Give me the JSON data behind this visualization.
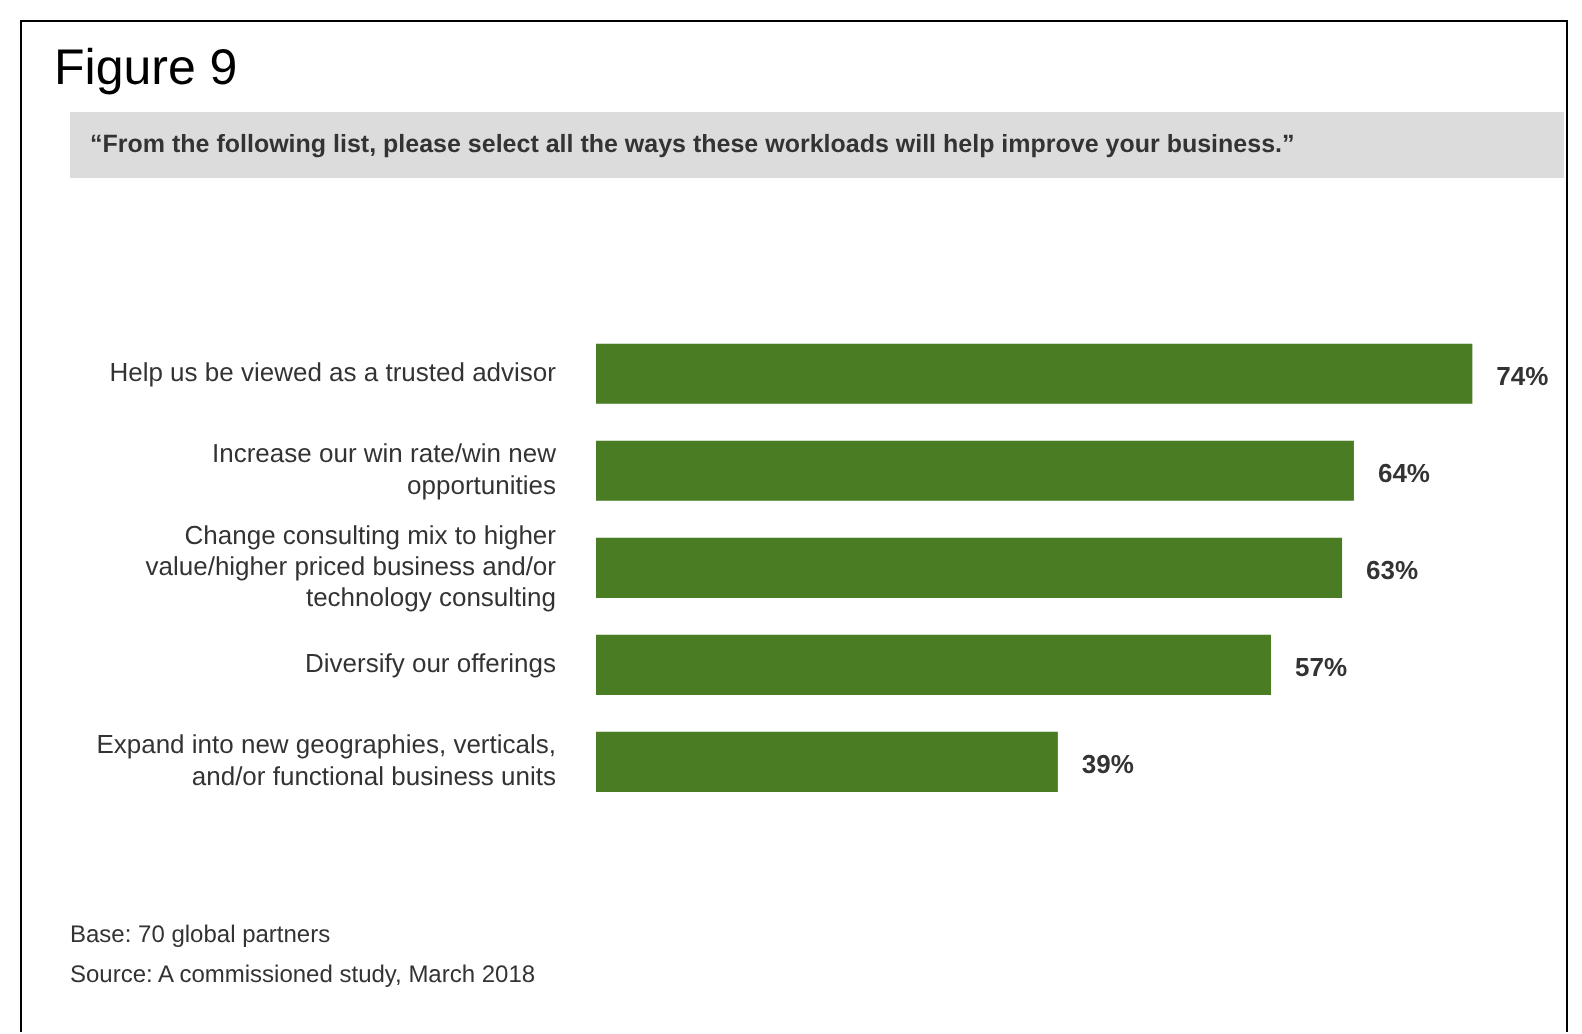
{
  "chart_data": {
    "type": "bar",
    "orientation": "horizontal",
    "tick_labels": "y",
    "title": "Figure 9",
    "subtitle": "“From the following list, please select all the ways these workloads will help improve your business.”",
    "categories": [
      "Help us be viewed as a trusted advisor",
      "Increase our win rate/win new opportunities",
      "Change consulting mix to higher value/higher priced business and/or technology consulting",
      "Diversify our offerings",
      "Expand into new geographies, verticals, and/or functional business units"
    ],
    "values": [
      74,
      64,
      63,
      57,
      39
    ],
    "value_labels": [
      "74%",
      "64%",
      "63%",
      "57%",
      "39%"
    ],
    "color": "#4a7c23",
    "grid": false,
    "legend": false,
    "annotations": [
      "Base: 70 global partners",
      "Source: A commissioned study, March 2018"
    ]
  }
}
